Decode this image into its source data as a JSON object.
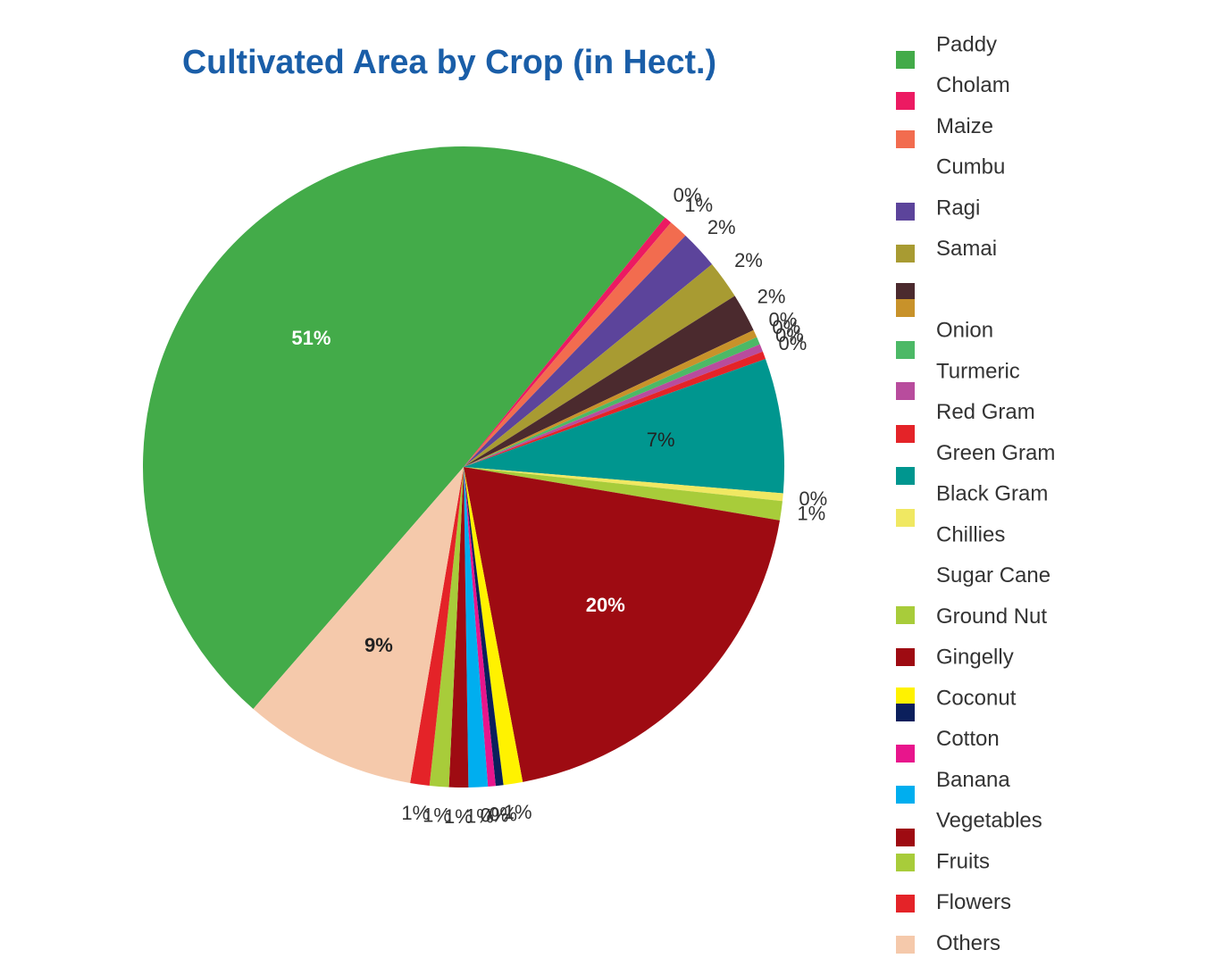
{
  "chart_data": {
    "type": "pie",
    "title": "Cultivated Area by Crop (in Hect.)",
    "values": [
      51,
      0.4,
      1,
      2,
      2,
      2,
      0.4,
      0.4,
      0.4,
      0.4,
      7,
      0.4,
      1,
      20,
      1,
      0.4,
      0.4,
      1,
      1,
      1,
      1,
      9
    ],
    "value_labels": [
      "51%",
      "0%",
      "1%",
      "2%",
      "2%",
      "2%",
      "0%",
      "0%",
      "0%",
      "0%",
      "7%",
      "0%",
      "1%",
      "20%",
      "1%",
      "0%",
      "0%",
      "1%",
      "1%",
      "1%",
      "1%",
      "9%"
    ],
    "colors": [
      "#43ab49",
      "#ec1a62",
      "#f26c4f",
      "#5c449b",
      "#a89b32",
      "#4b2a2e",
      "#c8922a",
      "#4cb966",
      "#b84c9d",
      "#e42328",
      "#00968f",
      "#f0e862",
      "#a8cc3a",
      "#9e0b12",
      "#fff200",
      "#0b1f5c",
      "#e8158c",
      "#00aeef",
      "#9e0b12",
      "#a8cc3a",
      "#e42328",
      "#f5c9ab"
    ],
    "legend_labels": [
      "Paddy",
      "Cholam",
      "Maize",
      "Cumbu",
      "Ragi",
      "Samai",
      null,
      "Onion",
      "Turmeric",
      "Red Gram",
      "Green Gram",
      "Black Gram",
      "Chillies",
      "Sugar Cane",
      "Ground Nut",
      "Gingelly",
      "Coconut",
      "Cotton",
      "Banana",
      "Vegetables",
      "Fruits",
      "Flowers",
      "Others"
    ]
  }
}
